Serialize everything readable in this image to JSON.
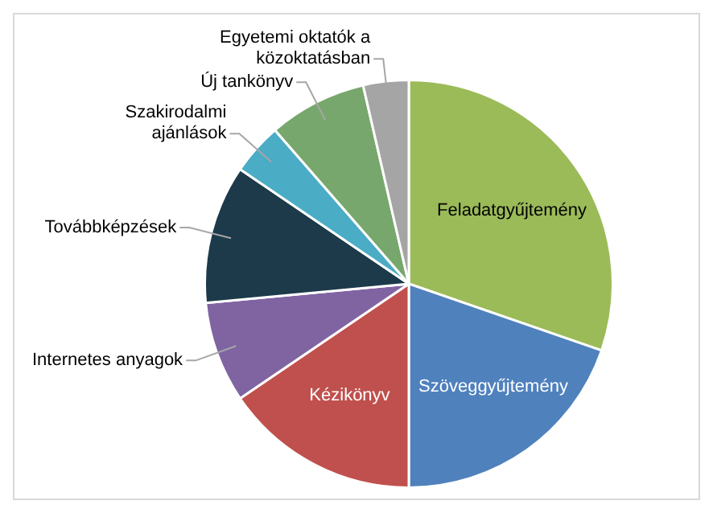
{
  "chart_data": {
    "type": "pie",
    "categories": [
      "Feladatgyűjtemény",
      "Szöveggyűjtemény",
      "Kézikönyv",
      "Internetes anyagok",
      "Továbbképzések",
      "Szakirodalmi ajánlások",
      "Új tankönyv",
      "Egyetemi oktatók a közoktatásban"
    ],
    "values": [
      30.3,
      19.7,
      15.5,
      8,
      11,
      4.1,
      7.8,
      3.6
    ],
    "colors": [
      "#9bbb59",
      "#4f81bd",
      "#c0504d",
      "#8064a2",
      "#1c3a4a",
      "#4bacc6",
      "#77a76c",
      "#a5a5a5"
    ],
    "legend": false
  }
}
